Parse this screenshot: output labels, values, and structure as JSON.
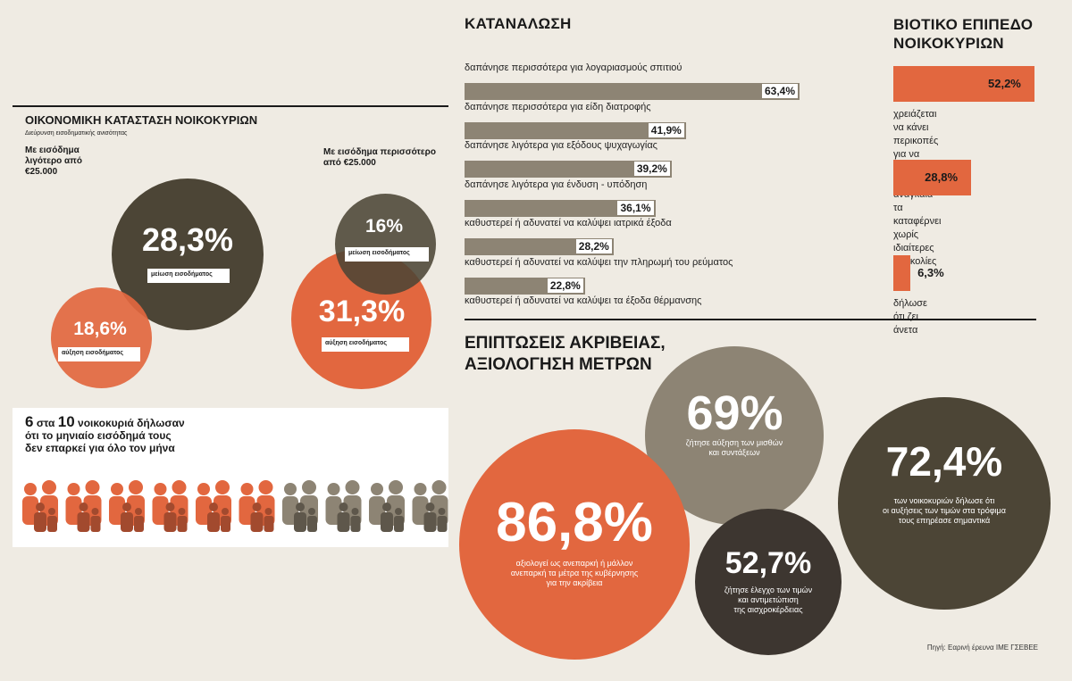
{
  "colors": {
    "orange": "#e2673f",
    "dark": "#4c4536",
    "taupe": "#8d8474",
    "darkbrown": "#3d3630",
    "bg": "#efebe3"
  },
  "income": {
    "title": "ΟΙΚΟΝΟΜΙΚΗ ΚΑΤΑΣΤΑΣΗ ΝΟΙΚΟΚΥΡΙΩΝ",
    "subtitle": "Διεύρυνση εισοδηματικής ανισότητας",
    "low_group_label": "Με εισόδημα λιγότερο από €25.000",
    "high_group_label": "Με εισόδημα περισσότερο από €25.000",
    "low_decrease_value": "28,3%",
    "low_decrease_label": "μείωση εισοδήματος",
    "low_increase_value": "18,6%",
    "low_increase_label": "αύξηση εισοδήματος",
    "high_decrease_value": "16%",
    "high_decrease_label": "μείωση εισοδήματος",
    "high_increase_value": "31,3%",
    "high_increase_label": "αύξηση εισοδήματος"
  },
  "households": {
    "number_big_1": "6",
    "word_1": "στα",
    "number_big_2": "10",
    "text_1": "νοικοκυριά δήλωσαν",
    "text_2": "ότι  το μηνιαίο εισόδημά τους",
    "text_3": "δεν επαρκεί για όλο τον μήνα",
    "total_icons": 10,
    "highlighted_icons": 6
  },
  "consumption": {
    "title": "ΚΑΤΑΝΑΛΩΣΗ",
    "items": [
      {
        "label": "δαπάνησε περισσότερα  για λογαριασμούς σπιτιού",
        "value": 63.4,
        "value_text": "63,4%"
      },
      {
        "label": "δαπάνησε περισσότερα για είδη διατροφής",
        "value": 41.9,
        "value_text": "41,9%"
      },
      {
        "label": "δαπάνησε λιγότερα για εξόδους ψυχαγωγίας",
        "value": 39.2,
        "value_text": "39,2%"
      },
      {
        "label": "δαπάνησε λιγότερα για ένδυση - υπόδηση",
        "value": 36.1,
        "value_text": "36,1%"
      },
      {
        "label": "καθυστερεί ή αδυνατεί να καλύψει ιατρικά έξοδα",
        "value": 28.2,
        "value_text": "28,2%"
      },
      {
        "label": "καθυστερεί ή αδυνατεί να καλύψει την πληρωμή του ρεύματος",
        "value": 22.8,
        "value_text": "22,8%"
      },
      {
        "label": "καθυστερεί ή αδυνατεί να καλύψει τα έξοδα θέρμανσης",
        "value": null,
        "value_text": null
      }
    ]
  },
  "living": {
    "title_1": "ΒΙΟΤΙΚΟ ΕΠΙΠΕΔΟ",
    "title_2": "ΝΟΙΚΟΚΥΡΙΩΝ",
    "items": [
      {
        "value": 52.2,
        "value_text": "52,2%",
        "label_1": "χρειάζεται να κάνει περικοπές",
        "label_2": "για να καλύψει τα αναγκαία"
      },
      {
        "value": 28.8,
        "value_text": "28,8%",
        "label_1": "τα καταφέρνει χωρίς",
        "label_2": "ιδιαίτερες δυσκολίες"
      },
      {
        "value": 6.3,
        "value_text": "6,3%",
        "label_1": "δήλωσε ότι ζει άνετα",
        "label_2": ""
      }
    ]
  },
  "effects": {
    "title_1": "ΕΠΙΠΤΩΣΕΙΣ ΑΚΡΙΒΕΙΑΣ,",
    "title_2": "ΑΞΙΟΛΟΓΗΣΗ ΜΕΤΡΩΝ",
    "c1_value": "86,8%",
    "c1_l1": "αξιολογεί ως ανεπαρκή ή μάλλον",
    "c1_l2": "ανεπαρκή τα μέτρα της κυβέρνησης",
    "c1_l3": "για την ακρίβεια",
    "c2_value": "69%",
    "c2_l1": "ζήτησε αύξηση των μισθών",
    "c2_l2": "και συντάξεων",
    "c3_value": "52,7%",
    "c3_l1": "ζήτησε έλεγχο των τιμών",
    "c3_l2": "και αντιμετώπιση",
    "c3_l3": "της αισχροκέρδειας",
    "c4_value": "72,4%",
    "c4_l1": "των νοικοκυριών δήλωσε ότι",
    "c4_l2": "οι αυξήσεις των τιμών στα τρόφιμα",
    "c4_l3": "τους επηρέασε σημαντικά"
  },
  "source": "Πηγή: Εαρινή έρευνα ΙΜΕ ΓΣΕΒΕΕ",
  "chart_data": [
    {
      "type": "bar",
      "title": "ΚΑΤΑΝΑΛΩΣΗ",
      "categories": [
        "δαπάνησε περισσότερα  για λογαριασμούς σπιτιού",
        "δαπάνησε περισσότερα για είδη διατροφής",
        "δαπάνησε λιγότερα για εξόδους ψυχαγωγίας",
        "δαπάνησε λιγότερα για ένδυση - υπόδηση",
        "καθυστερεί ή αδυνατεί να καλύψει ιατρικά έξοδα",
        "καθυστερεί ή αδυνατεί να καλύψει την πληρωμή του ρεύματος"
      ],
      "values": [
        63.4,
        41.9,
        39.2,
        36.1,
        28.2,
        22.8
      ]
    },
    {
      "type": "bar",
      "title": "ΒΙΟΤΙΚΟ ΕΠΙΠΕΔΟ ΝΟΙΚΟΚΥΡΙΩΝ",
      "categories": [
        "χρειάζεται να κάνει περικοπές για να καλύψει τα αναγκαία",
        "τα καταφέρνει χωρίς ιδιαίτερες δυσκολίες",
        "δήλωσε ότι ζει άνετα"
      ],
      "values": [
        52.2,
        28.8,
        6.3
      ]
    }
  ]
}
